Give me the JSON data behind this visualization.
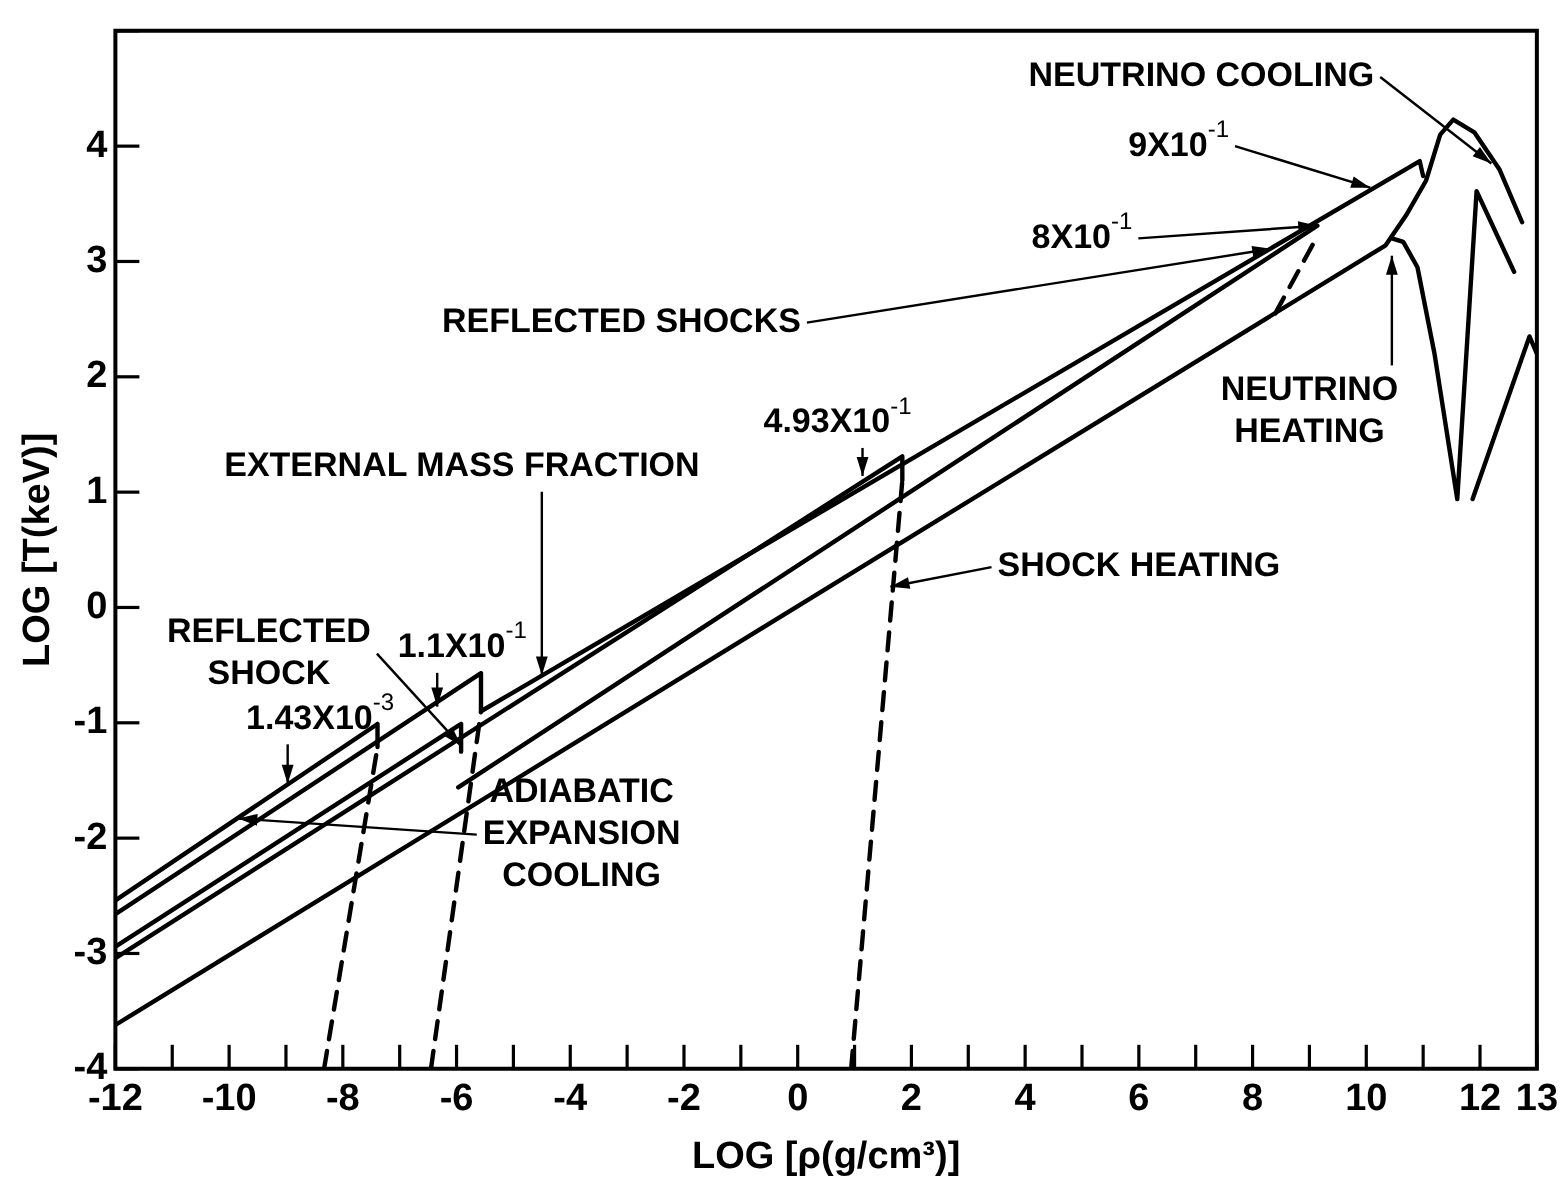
{
  "chart_data": {
    "type": "line",
    "xlabel": "LOG [ρ(g/cm³)]",
    "ylabel": "LOG [T(keV)]",
    "xlim": [
      -12,
      13
    ],
    "ylim": [
      -4,
      5
    ],
    "xticks": [
      -12,
      {
        "value": -11,
        "label": null
      },
      -10,
      {
        "value": -9,
        "label": null
      },
      -8,
      {
        "value": -7,
        "label": null
      },
      -6,
      {
        "value": -5,
        "label": null
      },
      -4,
      {
        "value": -3,
        "label": null
      },
      -2,
      {
        "value": -1,
        "label": null
      },
      0,
      {
        "value": 1,
        "label": null
      },
      2,
      {
        "value": 3,
        "label": null
      },
      4,
      {
        "value": 5,
        "label": null
      },
      6,
      {
        "value": 7,
        "label": null
      },
      8,
      {
        "value": 9,
        "label": null
      },
      10,
      {
        "value": 11,
        "label": null
      },
      12,
      13
    ],
    "yticks": [
      -4,
      -3,
      -2,
      -1,
      0,
      1,
      2,
      3,
      4,
      {
        "value": 5,
        "label": null
      }
    ],
    "grid": false,
    "legend": false,
    "marker": "none",
    "series": [
      {
        "color": "#000000",
        "x": [
          -12,
          -7.39,
          -7.39
        ],
        "values": [
          -2.54,
          -1.01,
          -1.21
        ]
      },
      {
        "color": "#000000",
        "x": [
          -12,
          -5.57,
          -5.57,
          10.94,
          11.0
        ],
        "values": [
          -2.66,
          -0.57,
          -0.9,
          3.87,
          3.74
        ]
      },
      {
        "color": "#000000",
        "x": [
          -12,
          -5.92,
          -5.92
        ],
        "values": [
          -2.94,
          -1.01,
          -1.25
        ]
      },
      {
        "color": "#000000",
        "x": [
          -12,
          1.84,
          1.84
        ],
        "values": [
          -3.04,
          1.31,
          1.1
        ]
      },
      {
        "color": "#000000",
        "x": [
          -5.97,
          9.14
        ],
        "values": [
          -1.56,
          3.31
        ]
      },
      {
        "color": "#000000",
        "line_style": "dashed",
        "x": [
          -8.33,
          -7.39
        ],
        "values": [
          -4,
          -1.21
        ]
      },
      {
        "color": "#000000",
        "line_style": "dashed",
        "x": [
          -6.45,
          -5.57
        ],
        "values": [
          -4,
          -0.9
        ]
      },
      {
        "color": "#000000",
        "line_style": "dashed",
        "x": [
          0.94,
          1.84
        ],
        "values": [
          -4,
          1.1
        ]
      },
      {
        "color": "#000000",
        "line_style": "dashed",
        "x": [
          8.4,
          9.14
        ],
        "values": [
          2.55,
          3.22
        ]
      },
      {
        "color": "#000000",
        "x": [
          -12,
          10.34,
          10.7,
          11.05,
          11.3,
          11.53,
          11.9,
          12.34,
          12.74
        ],
        "values": [
          -3.62,
          3.14,
          3.4,
          3.7,
          4.1,
          4.23,
          4.12,
          3.8,
          3.34
        ]
      },
      {
        "color": "#000000",
        "x": [
          10.45,
          10.65,
          10.9,
          11.2,
          11.6,
          11.94,
          12.6
        ],
        "values": [
          3.2,
          3.17,
          2.95,
          2.2,
          0.94,
          3.61,
          2.91
        ]
      },
      {
        "color": "#000000",
        "x": [
          11.87,
          12.87,
          13
        ],
        "values": [
          0.94,
          2.35,
          2.2
        ]
      }
    ],
    "annotations": [
      {
        "text": "NEUTRINO COOLING",
        "x": 12.2,
        "y": 3.85
      },
      {
        "text": "9X10$^{-1}$",
        "x": 10.07,
        "y": 3.64
      },
      {
        "text": "8X10$^{-1}$",
        "x": 9.14,
        "y": 3.31
      },
      {
        "text": "REFLECTED SHOCKS",
        "x": 8.33,
        "y": 3.11
      },
      {
        "text": "NEUTRINO HEATING",
        "x": 10.45,
        "y": 3.05
      },
      {
        "text": "SHOCK HEATING",
        "x": 1.63,
        "y": 0.18
      },
      {
        "text": "4.93X10$^{-1}$",
        "x": 1.14,
        "y": 1.14
      },
      {
        "text": "EXTERNAL MASS FRACTION",
        "x": -4.5,
        "y": -0.59
      },
      {
        "text": "1.1X10$^{-1}$",
        "x": -6.34,
        "y": -0.86
      },
      {
        "text": "REFLECTED SHOCK",
        "x": -5.92,
        "y": -1.2
      },
      {
        "text": "1.43X10$^{-3}$",
        "x": -8.97,
        "y": -1.53
      },
      {
        "text": "ADIABATIC EXPANSION COOLING",
        "x": -9.84,
        "y": -1.83
      }
    ]
  }
}
